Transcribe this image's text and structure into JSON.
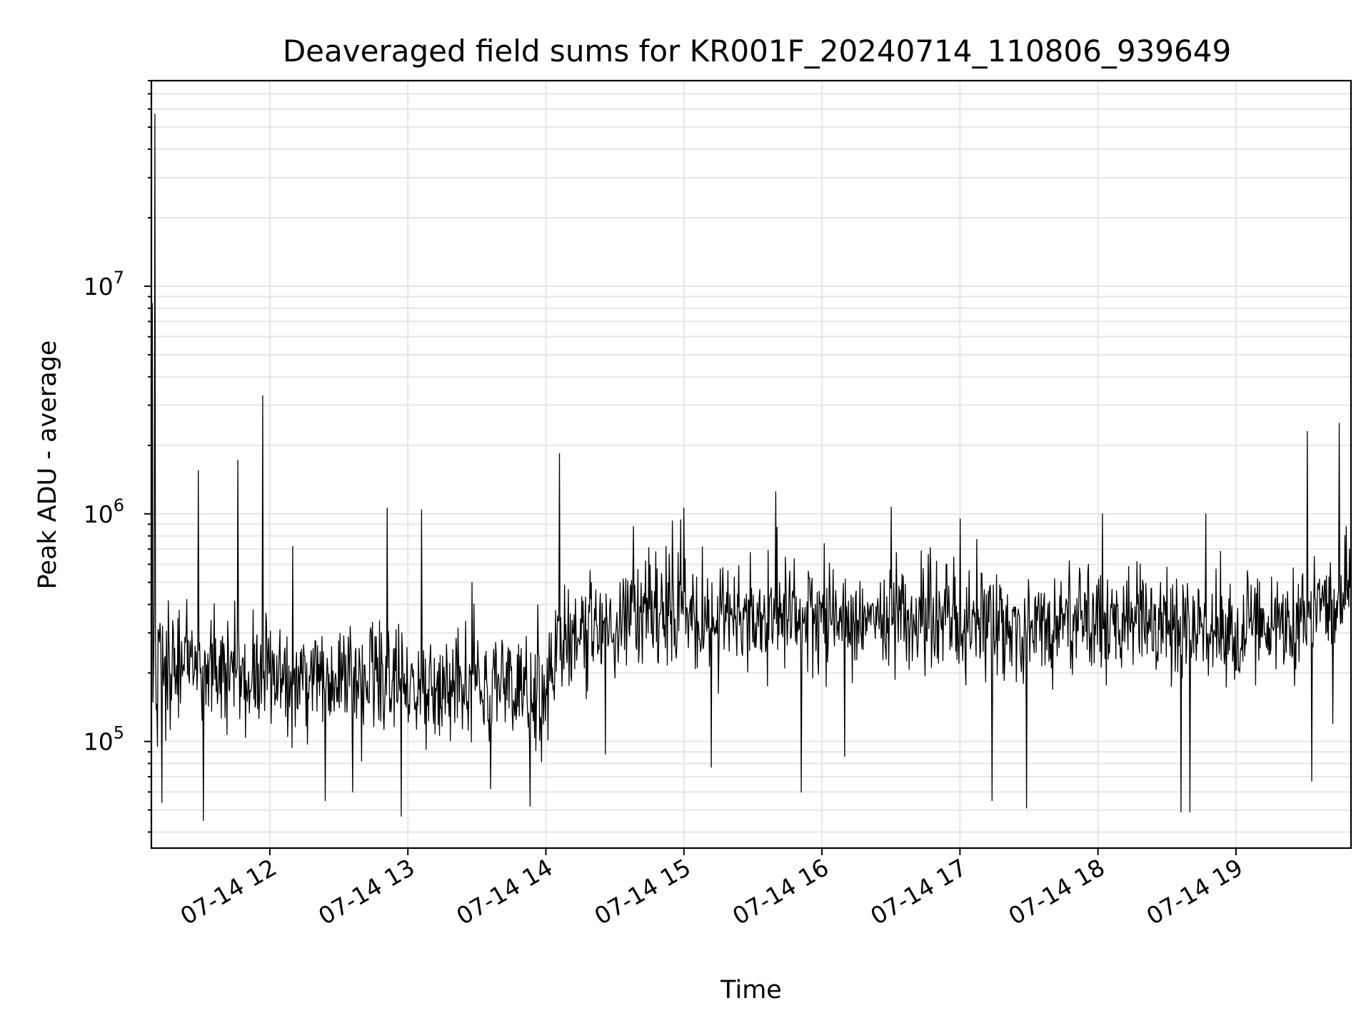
{
  "chart_data": {
    "type": "line",
    "title": "Deaveraged field sums for KR001F_20240714_110806_939649",
    "xlabel": "Time",
    "ylabel": "Peak ADU - average",
    "yscale": "log",
    "ylim": [
      34000,
      80000000
    ],
    "xlim": [
      "2024-07-14 11:08:30",
      "2024-07-14 19:50:00"
    ],
    "grid": "on (major and minor)",
    "y_ticks": [
      {
        "value": 100000,
        "base": "10",
        "exp": "5"
      },
      {
        "value": 1000000,
        "base": "10",
        "exp": "6"
      },
      {
        "value": 10000000,
        "base": "10",
        "exp": "7"
      }
    ],
    "x_ticks": [
      {
        "value": "2024-07-14 12:00",
        "label": "07-14 12"
      },
      {
        "value": "2024-07-14 13:00",
        "label": "07-14 13"
      },
      {
        "value": "2024-07-14 14:00",
        "label": "07-14 14"
      },
      {
        "value": "2024-07-14 15:00",
        "label": "07-14 15"
      },
      {
        "value": "2024-07-14 16:00",
        "label": "07-14 16"
      },
      {
        "value": "2024-07-14 17:00",
        "label": "07-14 17"
      },
      {
        "value": "2024-07-14 18:00",
        "label": "07-14 18"
      },
      {
        "value": "2024-07-14 19:00",
        "label": "07-14 19"
      }
    ],
    "series": [
      {
        "color": "#000000",
        "baseline_profile": [
          {
            "time": "2024-07-14 11:09",
            "typical": 230000,
            "spread": 0.55
          },
          {
            "time": "2024-07-14 12:00",
            "typical": 185000,
            "spread": 0.5
          },
          {
            "time": "2024-07-14 13:00",
            "typical": 180000,
            "spread": 0.5
          },
          {
            "time": "2024-07-14 14:00",
            "typical": 170000,
            "spread": 0.5
          },
          {
            "time": "2024-07-14 14:05",
            "typical": 260000,
            "spread": 0.5
          },
          {
            "time": "2024-07-14 14:45",
            "typical": 380000,
            "spread": 0.5
          },
          {
            "time": "2024-07-14 15:00",
            "typical": 360000,
            "spread": 0.5
          },
          {
            "time": "2024-07-14 16:00",
            "typical": 340000,
            "spread": 0.5
          },
          {
            "time": "2024-07-14 17:00",
            "typical": 330000,
            "spread": 0.5
          },
          {
            "time": "2024-07-14 18:00",
            "typical": 320000,
            "spread": 0.5
          },
          {
            "time": "2024-07-14 19:00",
            "typical": 310000,
            "spread": 0.5
          },
          {
            "time": "2024-07-14 19:30",
            "typical": 330000,
            "spread": 0.5
          },
          {
            "time": "2024-07-14 19:50",
            "typical": 470000,
            "spread": 0.5
          }
        ],
        "notable_points": [
          {
            "time": "2024-07-14 11:10",
            "value": 57000000
          },
          {
            "time": "2024-07-14 11:09",
            "value": 8400000
          },
          {
            "time": "2024-07-14 11:11",
            "value": 95000
          },
          {
            "time": "2024-07-14 11:13",
            "value": 54000
          },
          {
            "time": "2024-07-14 11:29",
            "value": 1550000
          },
          {
            "time": "2024-07-14 11:31",
            "value": 45000
          },
          {
            "time": "2024-07-14 11:46",
            "value": 1720000
          },
          {
            "time": "2024-07-14 11:57",
            "value": 3300000
          },
          {
            "time": "2024-07-14 12:10",
            "value": 720000
          },
          {
            "time": "2024-07-14 12:24",
            "value": 55000
          },
          {
            "time": "2024-07-14 12:36",
            "value": 60000
          },
          {
            "time": "2024-07-14 12:51",
            "value": 1060000
          },
          {
            "time": "2024-07-14 12:57",
            "value": 47000
          },
          {
            "time": "2024-07-14 13:06",
            "value": 1040000
          },
          {
            "time": "2024-07-14 13:28",
            "value": 500000
          },
          {
            "time": "2024-07-14 13:36",
            "value": 62000
          },
          {
            "time": "2024-07-14 13:53",
            "value": 52000
          },
          {
            "time": "2024-07-14 14:06",
            "value": 1840000
          },
          {
            "time": "2024-07-14 14:26",
            "value": 88000
          },
          {
            "time": "2024-07-14 14:38",
            "value": 880000
          },
          {
            "time": "2024-07-14 14:55",
            "value": 930000
          },
          {
            "time": "2024-07-14 15:00",
            "value": 1060000
          },
          {
            "time": "2024-07-14 15:12",
            "value": 77000
          },
          {
            "time": "2024-07-14 15:40",
            "value": 1250000
          },
          {
            "time": "2024-07-14 15:51",
            "value": 60000
          },
          {
            "time": "2024-07-14 16:01",
            "value": 740000
          },
          {
            "time": "2024-07-14 16:10",
            "value": 86000
          },
          {
            "time": "2024-07-14 16:30",
            "value": 1070000
          },
          {
            "time": "2024-07-14 17:00",
            "value": 950000
          },
          {
            "time": "2024-07-14 17:14",
            "value": 55000
          },
          {
            "time": "2024-07-14 17:29",
            "value": 51000
          },
          {
            "time": "2024-07-14 18:02",
            "value": 1000000
          },
          {
            "time": "2024-07-14 18:36",
            "value": 49000
          },
          {
            "time": "2024-07-14 18:40",
            "value": 49000
          },
          {
            "time": "2024-07-14 18:47",
            "value": 1000000
          },
          {
            "time": "2024-07-14 19:31",
            "value": 2300000
          },
          {
            "time": "2024-07-14 19:33",
            "value": 67000
          },
          {
            "time": "2024-07-14 19:42",
            "value": 120000
          },
          {
            "time": "2024-07-14 19:45",
            "value": 2500000
          },
          {
            "time": "2024-07-14 19:48",
            "value": 880000
          }
        ]
      }
    ]
  }
}
